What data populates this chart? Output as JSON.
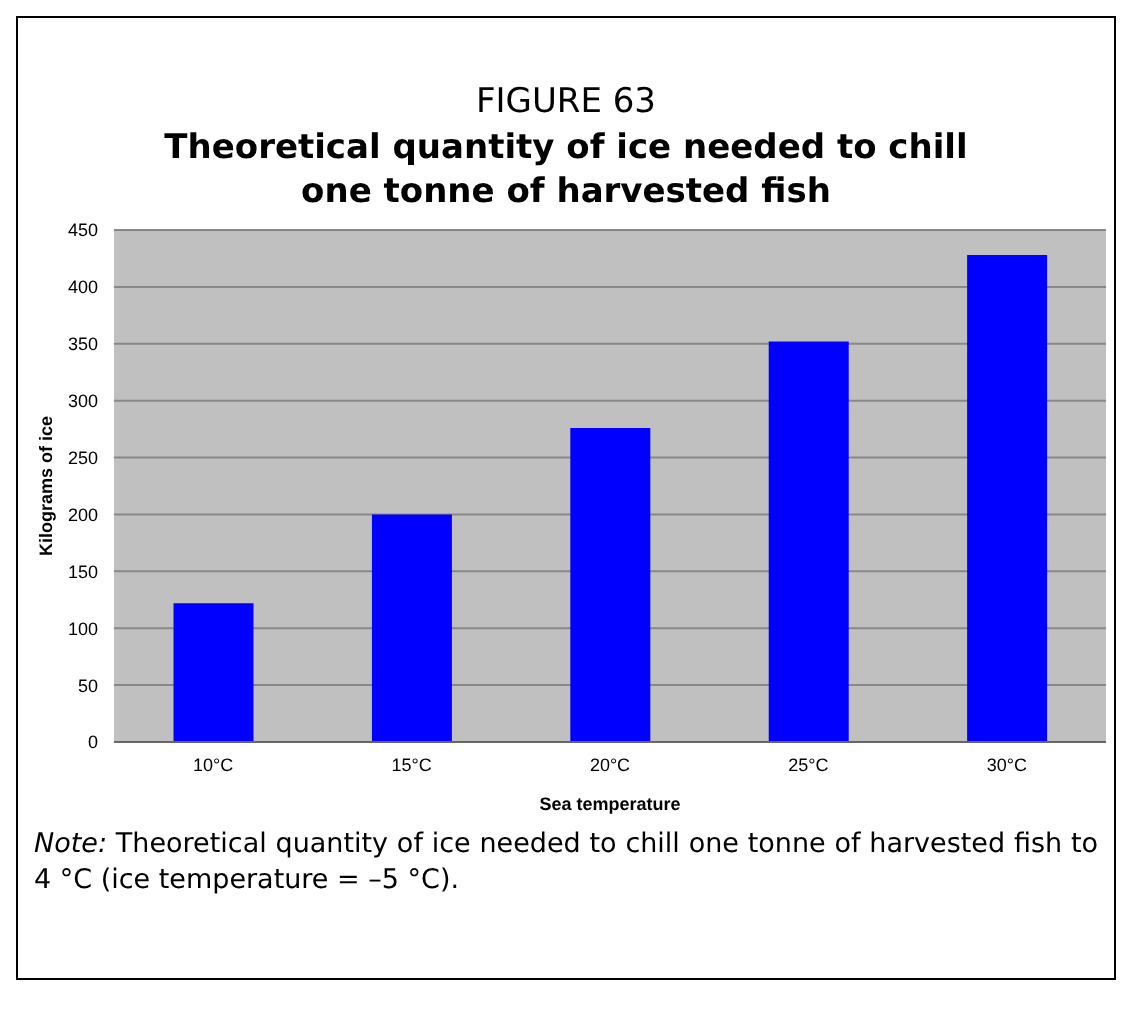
{
  "chart_data": {
    "type": "bar",
    "title": "FIGURE 63",
    "subtitle": "Theoretical quantity of ice needed to chill one tonne of harvested fish",
    "categories": [
      "10°C",
      "15°C",
      "20°C",
      "25°C",
      "30°C"
    ],
    "values": [
      122,
      200,
      276,
      352,
      428
    ],
    "color": "#0000ff",
    "xlabel": "Sea temperature",
    "ylabel": "Kilograms of ice",
    "ylim": [
      0,
      450
    ],
    "yticks": [
      0,
      50,
      100,
      150,
      200,
      250,
      300,
      350,
      400,
      450
    ],
    "grid": "y",
    "annotations": [
      "Note: Theoretical quantity of ice needed to chill one tonne of harvested fish to 4 °C (ice temperature = –5 °C)."
    ]
  }
}
